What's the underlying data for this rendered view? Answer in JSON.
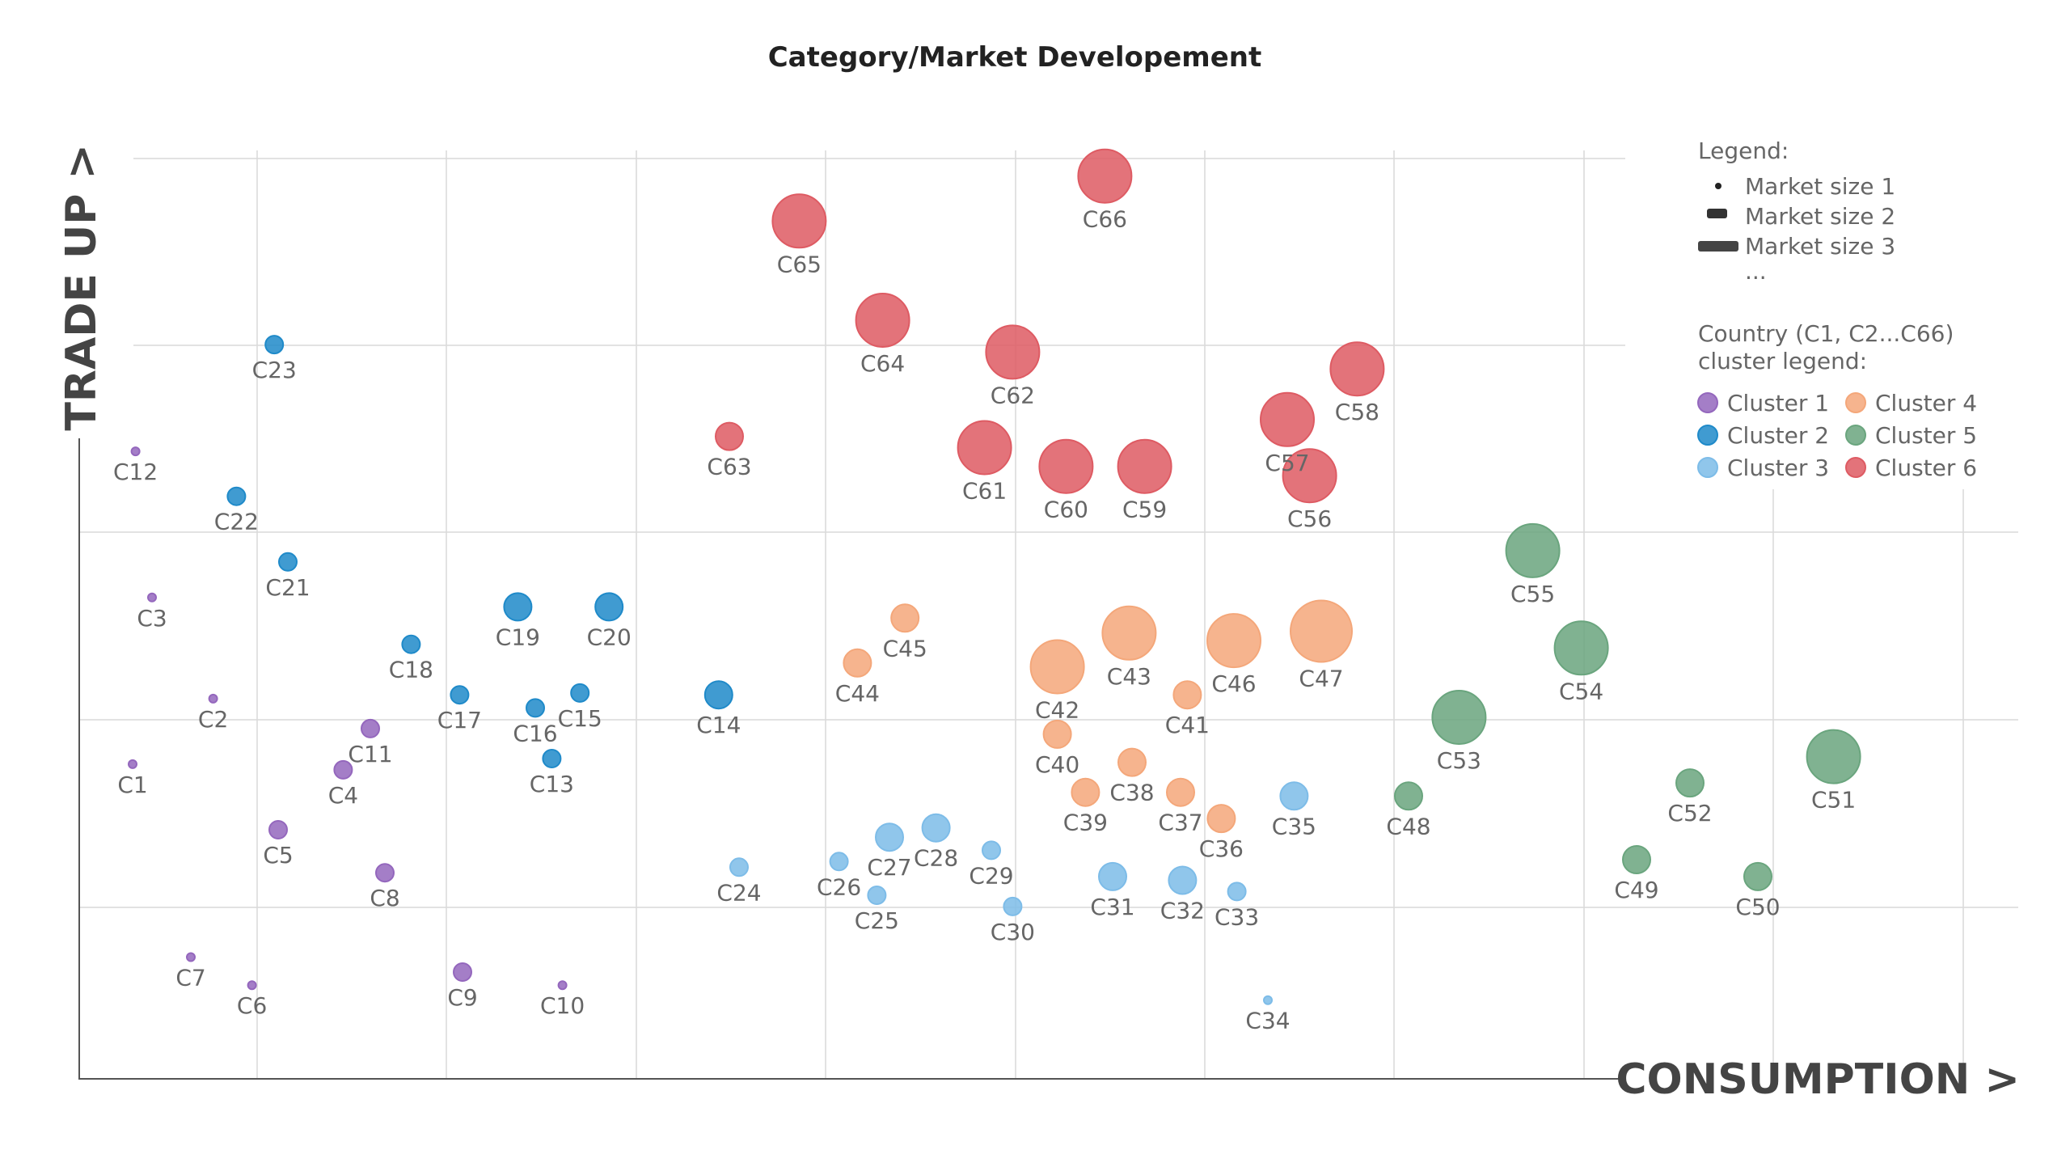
{
  "chart_data": {
    "type": "scatter",
    "title": "Category/Market Developement",
    "xlabel": "CONSUMPTION >",
    "ylabel": "TRADE UP >",
    "grid": true,
    "legend_position": "top-right",
    "legend": {
      "title": "Legend:",
      "size_items": [
        "Market size 1",
        "Market size 2",
        "Market size 3",
        "..."
      ],
      "cluster_title": "Country (C1, C2...C66)",
      "cluster_subtitle": "cluster legend:",
      "clusters": [
        {
          "name": "Cluster 1",
          "color": "#9467bd"
        },
        {
          "name": "Cluster 2",
          "color": "#1f8ac9"
        },
        {
          "name": "Cluster 3",
          "color": "#7dbce8"
        },
        {
          "name": "Cluster 4",
          "color": "#f4a77a"
        },
        {
          "name": "Cluster 5",
          "color": "#6aa57e"
        },
        {
          "name": "Cluster 6",
          "color": "#de5b63"
        }
      ]
    },
    "points": [
      {
        "label": "C1",
        "x": 0.55,
        "y": 1.68,
        "size": 1,
        "cluster": 1
      },
      {
        "label": "C2",
        "x": 1.38,
        "y": 2.03,
        "size": 1,
        "cluster": 1
      },
      {
        "label": "C3",
        "x": 0.75,
        "y": 2.57,
        "size": 1,
        "cluster": 1
      },
      {
        "label": "C4",
        "x": 2.72,
        "y": 1.65,
        "size": 2,
        "cluster": 1
      },
      {
        "label": "C5",
        "x": 2.05,
        "y": 1.33,
        "size": 2,
        "cluster": 1
      },
      {
        "label": "C6",
        "x": 1.78,
        "y": 0.5,
        "size": 1,
        "cluster": 1
      },
      {
        "label": "C7",
        "x": 1.15,
        "y": 0.65,
        "size": 1,
        "cluster": 1
      },
      {
        "label": "C8",
        "x": 3.15,
        "y": 1.1,
        "size": 2,
        "cluster": 1
      },
      {
        "label": "C9",
        "x": 3.95,
        "y": 0.57,
        "size": 2,
        "cluster": 1
      },
      {
        "label": "C10",
        "x": 4.98,
        "y": 0.5,
        "size": 1,
        "cluster": 1
      },
      {
        "label": "C11",
        "x": 3.0,
        "y": 1.87,
        "size": 2,
        "cluster": 1
      },
      {
        "label": "C12",
        "x": 0.58,
        "y": 3.35,
        "size": 1,
        "cluster": 1
      },
      {
        "label": "C13",
        "x": 4.87,
        "y": 1.71,
        "size": 2,
        "cluster": 2
      },
      {
        "label": "C14",
        "x": 6.59,
        "y": 2.05,
        "size": 3,
        "cluster": 2
      },
      {
        "label": "C15",
        "x": 5.16,
        "y": 2.06,
        "size": 2,
        "cluster": 2
      },
      {
        "label": "C16",
        "x": 4.7,
        "y": 1.98,
        "size": 2,
        "cluster": 2
      },
      {
        "label": "C17",
        "x": 3.92,
        "y": 2.05,
        "size": 2,
        "cluster": 2
      },
      {
        "label": "C18",
        "x": 3.42,
        "y": 2.32,
        "size": 2,
        "cluster": 2
      },
      {
        "label": "C19",
        "x": 4.52,
        "y": 2.52,
        "size": 3,
        "cluster": 2
      },
      {
        "label": "C20",
        "x": 5.46,
        "y": 2.52,
        "size": 3,
        "cluster": 2
      },
      {
        "label": "C21",
        "x": 2.15,
        "y": 2.76,
        "size": 2,
        "cluster": 2
      },
      {
        "label": "C22",
        "x": 1.62,
        "y": 3.11,
        "size": 2,
        "cluster": 2
      },
      {
        "label": "C23",
        "x": 2.01,
        "y": 3.92,
        "size": 2,
        "cluster": 2
      },
      {
        "label": "C24",
        "x": 6.8,
        "y": 1.13,
        "size": 2,
        "cluster": 3
      },
      {
        "label": "C25",
        "x": 8.22,
        "y": 0.98,
        "size": 2,
        "cluster": 3
      },
      {
        "label": "C26",
        "x": 7.83,
        "y": 1.16,
        "size": 2,
        "cluster": 3
      },
      {
        "label": "C27",
        "x": 8.35,
        "y": 1.29,
        "size": 3,
        "cluster": 3
      },
      {
        "label": "C28",
        "x": 8.83,
        "y": 1.34,
        "size": 3,
        "cluster": 3
      },
      {
        "label": "C29",
        "x": 9.4,
        "y": 1.22,
        "size": 2,
        "cluster": 3
      },
      {
        "label": "C30",
        "x": 9.62,
        "y": 0.92,
        "size": 2,
        "cluster": 3
      },
      {
        "label": "C31",
        "x": 10.65,
        "y": 1.08,
        "size": 3,
        "cluster": 3
      },
      {
        "label": "C32",
        "x": 11.37,
        "y": 1.06,
        "size": 3,
        "cluster": 3
      },
      {
        "label": "C33",
        "x": 11.93,
        "y": 1.0,
        "size": 2,
        "cluster": 3
      },
      {
        "label": "C34",
        "x": 12.25,
        "y": 0.42,
        "size": 1,
        "cluster": 3
      },
      {
        "label": "C35",
        "x": 12.52,
        "y": 1.51,
        "size": 3,
        "cluster": 3
      },
      {
        "label": "C36",
        "x": 11.77,
        "y": 1.39,
        "size": 3,
        "cluster": 4
      },
      {
        "label": "C37",
        "x": 11.35,
        "y": 1.53,
        "size": 3,
        "cluster": 4
      },
      {
        "label": "C38",
        "x": 10.85,
        "y": 1.69,
        "size": 3,
        "cluster": 4
      },
      {
        "label": "C39",
        "x": 10.37,
        "y": 1.53,
        "size": 3,
        "cluster": 4
      },
      {
        "label": "C40",
        "x": 10.08,
        "y": 1.84,
        "size": 3,
        "cluster": 4
      },
      {
        "label": "C41",
        "x": 11.42,
        "y": 2.05,
        "size": 3,
        "cluster": 4
      },
      {
        "label": "C42",
        "x": 10.08,
        "y": 2.2,
        "size": 4,
        "cluster": 4
      },
      {
        "label": "C43",
        "x": 10.82,
        "y": 2.38,
        "size": 4,
        "cluster": 4
      },
      {
        "label": "C44",
        "x": 8.02,
        "y": 2.22,
        "size": 3,
        "cluster": 4
      },
      {
        "label": "C45",
        "x": 8.51,
        "y": 2.46,
        "size": 3,
        "cluster": 4
      },
      {
        "label": "C46",
        "x": 11.9,
        "y": 2.34,
        "size": 4,
        "cluster": 4
      },
      {
        "label": "C47",
        "x": 12.8,
        "y": 2.39,
        "size": 5,
        "cluster": 4
      },
      {
        "label": "C48",
        "x": 13.7,
        "y": 1.51,
        "size": 3,
        "cluster": 5
      },
      {
        "label": "C49",
        "x": 16.05,
        "y": 1.17,
        "size": 3,
        "cluster": 5
      },
      {
        "label": "C50",
        "x": 17.3,
        "y": 1.08,
        "size": 3,
        "cluster": 5
      },
      {
        "label": "C51",
        "x": 18.08,
        "y": 1.72,
        "size": 4,
        "cluster": 5
      },
      {
        "label": "C52",
        "x": 16.6,
        "y": 1.58,
        "size": 3,
        "cluster": 5
      },
      {
        "label": "C53",
        "x": 14.22,
        "y": 1.93,
        "size": 4,
        "cluster": 5
      },
      {
        "label": "C54",
        "x": 15.48,
        "y": 2.3,
        "size": 4,
        "cluster": 5
      },
      {
        "label": "C55",
        "x": 14.98,
        "y": 2.82,
        "size": 4,
        "cluster": 5
      },
      {
        "label": "C56",
        "x": 12.68,
        "y": 3.22,
        "size": 4,
        "cluster": 6
      },
      {
        "label": "C57",
        "x": 12.45,
        "y": 3.52,
        "size": 4,
        "cluster": 6
      },
      {
        "label": "C58",
        "x": 13.17,
        "y": 3.79,
        "size": 4,
        "cluster": 6
      },
      {
        "label": "C59",
        "x": 10.98,
        "y": 3.27,
        "size": 4,
        "cluster": 6
      },
      {
        "label": "C60",
        "x": 10.17,
        "y": 3.27,
        "size": 4,
        "cluster": 6
      },
      {
        "label": "C61",
        "x": 9.33,
        "y": 3.37,
        "size": 4,
        "cluster": 6
      },
      {
        "label": "C62",
        "x": 9.62,
        "y": 3.88,
        "size": 4,
        "cluster": 6
      },
      {
        "label": "C63",
        "x": 6.7,
        "y": 3.43,
        "size": 3,
        "cluster": 6
      },
      {
        "label": "C64",
        "x": 8.28,
        "y": 4.05,
        "size": 4,
        "cluster": 6
      },
      {
        "label": "C65",
        "x": 7.42,
        "y": 4.58,
        "size": 4,
        "cluster": 6
      },
      {
        "label": "C66",
        "x": 10.57,
        "y": 4.82,
        "size": 4,
        "cluster": 6
      }
    ]
  }
}
